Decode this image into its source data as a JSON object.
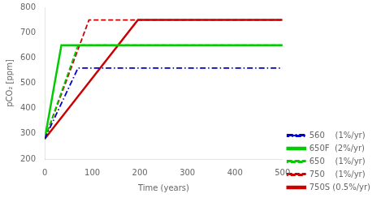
{
  "chart_data": {
    "type": "line",
    "xlabel": "Time (years)",
    "ylabel": "pCO₂ [ppm]",
    "xlim": [
      0,
      500
    ],
    "ylim": [
      200,
      800
    ],
    "xticks": [
      0,
      100,
      200,
      300,
      400,
      500
    ],
    "yticks": [
      200,
      300,
      400,
      500,
      600,
      700,
      800
    ],
    "grid": false,
    "legend": "lower right",
    "series": [
      {
        "name": "560    (1%/yr)",
        "color": "#0000cc",
        "line_style": "dashdot",
        "x": [
          0,
          70,
          500
        ],
        "values": [
          280,
          560,
          560
        ]
      },
      {
        "name": "650F  (2%/yr)",
        "color": "#00cc00",
        "line_style": "solid",
        "x": [
          0,
          35,
          500
        ],
        "values": [
          280,
          650,
          650
        ]
      },
      {
        "name": "650    (1%/yr)",
        "color": "#00cc00",
        "line_style": "dashed",
        "x": [
          0,
          70,
          500
        ],
        "values": [
          280,
          650,
          650
        ]
      },
      {
        "name": "750    (1%/yr)",
        "color": "#cc0000",
        "line_style": "dashed",
        "x": [
          0,
          93,
          500
        ],
        "values": [
          280,
          750,
          750
        ]
      },
      {
        "name": "750S (0.5%/yr)",
        "color": "#cc0000",
        "line_style": "solid",
        "x": [
          0,
          196,
          500
        ],
        "values": [
          280,
          750,
          750
        ]
      }
    ]
  }
}
